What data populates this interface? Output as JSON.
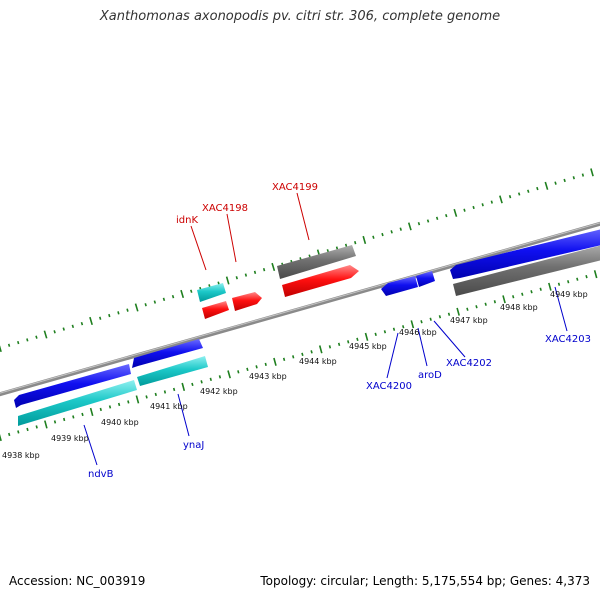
{
  "title": "Xanthomonas axonopodis pv. citri str. 306, complete genome",
  "footer": {
    "accession": "Accession: NC_003919",
    "summary": "Topology: circular; Length: 5,175,554 bp; Genes: 4,373"
  },
  "colors": {
    "backbone": "#7f7f7f",
    "ticks": "#1f7f1f",
    "forward_gene": "#0000e6",
    "reverse_gene": "#00bcbc",
    "rna_gene": "#ff0000",
    "other_gene": "#6e6e6e",
    "forward_label": "#0000cc",
    "reverse_label": "#cc0000"
  },
  "kbp_ticks": [
    "4938 kbp",
    "4939 kbp",
    "4940 kbp",
    "4941 kbp",
    "4942 kbp",
    "4943 kbp",
    "4944 kbp",
    "4945 kbp",
    "4946 kbp",
    "4947 kbp",
    "4948 kbp",
    "4949 kbp"
  ],
  "gene_labels_top": [
    "idnK",
    "XAC4198",
    "XAC4199"
  ],
  "gene_labels_bottom": [
    "ndvB",
    "ynaJ",
    "XAC4200",
    "aroD",
    "XAC4202",
    "XAC4203"
  ]
}
